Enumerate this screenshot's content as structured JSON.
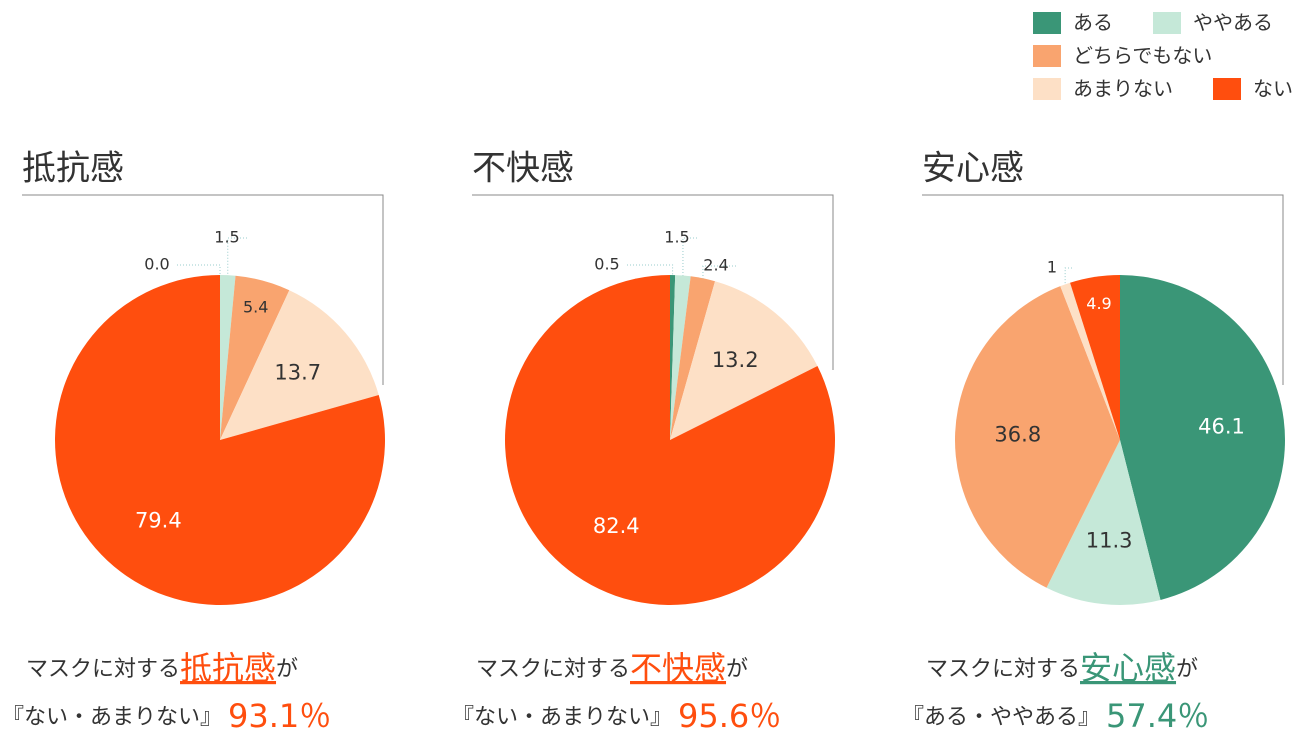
{
  "legend": {
    "labels": [
      "ある",
      "ややある",
      "どちらでもない",
      "あまりない",
      "ない"
    ],
    "colors": [
      "#3a9677",
      "#c5e8d8",
      "#f9a46f",
      "#fde0c6",
      "#ff4e0e"
    ]
  },
  "chart_data": [
    {
      "type": "pie",
      "title": "抵抗感",
      "values": [
        0.0,
        1.5,
        5.4,
        13.7,
        79.4
      ],
      "value_labels": [
        "0.0",
        "1.5",
        "5.4",
        "13.7",
        "79.4"
      ],
      "caption": {
        "prefix": "マスクに対する",
        "highlight": "抵抗感",
        "suffix": "が",
        "range": "『ない・あまりない』",
        "total": "93.1％",
        "color": "#ff4e0e"
      }
    },
    {
      "type": "pie",
      "title": "不快感",
      "values": [
        0.5,
        1.5,
        2.4,
        13.2,
        82.4
      ],
      "caption": {
        "prefix": "マスクに対する",
        "highlight": "不快感",
        "suffix": "が",
        "range": "『ない・あまりない』",
        "total": "95.6％",
        "color": "#ff4e0e"
      }
    },
    {
      "type": "pie",
      "title": "安心感",
      "values": [
        46.1,
        11.3,
        36.8,
        1.0,
        4.9
      ],
      "caption": {
        "prefix": "マスクに対する",
        "highlight": "安心感",
        "suffix": "が",
        "range": "『ある・ややある』",
        "total": "57.4％",
        "color": "#3a9677"
      }
    }
  ]
}
